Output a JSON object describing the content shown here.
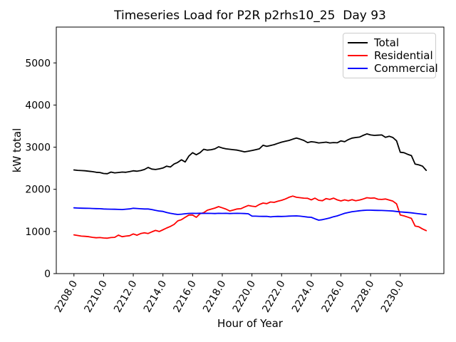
{
  "chart_data": {
    "type": "line",
    "title": "Timeseries Load for P2R p2rhs10_25  Day 93",
    "xlabel": "Hour of Year",
    "ylabel": "kW total",
    "grid": false,
    "legend_position": "upper right",
    "xlim": [
      2206.81,
      2232.94
    ],
    "ylim": [
      0,
      5850
    ],
    "x_tick_values": [
      2208,
      2210,
      2212,
      2214,
      2216,
      2218,
      2220,
      2222,
      2224,
      2226,
      2228,
      2230
    ],
    "x_tick_labels": [
      "2208.0",
      "2210.0",
      "2212.0",
      "2214.0",
      "2216.0",
      "2218.0",
      "2220.0",
      "2222.0",
      "2224.0",
      "2226.0",
      "2228.0",
      "2230.0"
    ],
    "x_tick_rotation_deg": 60,
    "y_tick_values": [
      0,
      1000,
      2000,
      3000,
      4000,
      5000
    ],
    "y_tick_labels": [
      "0",
      "1000",
      "2000",
      "3000",
      "4000",
      "5000"
    ],
    "x_start": 2208.0,
    "x_step": 0.25,
    "series": [
      {
        "name": "Total",
        "color": "#000000",
        "values": [
          2460,
          2450,
          2445,
          2440,
          2430,
          2420,
          2405,
          2400,
          2375,
          2370,
          2410,
          2390,
          2400,
          2410,
          2405,
          2420,
          2440,
          2430,
          2445,
          2470,
          2520,
          2480,
          2470,
          2485,
          2505,
          2550,
          2530,
          2600,
          2640,
          2700,
          2650,
          2790,
          2870,
          2820,
          2870,
          2950,
          2930,
          2940,
          2960,
          3010,
          2980,
          2960,
          2950,
          2940,
          2930,
          2910,
          2890,
          2905,
          2920,
          2940,
          2960,
          3045,
          3020,
          3040,
          3060,
          3090,
          3120,
          3140,
          3160,
          3190,
          3215,
          3190,
          3160,
          3110,
          3130,
          3120,
          3100,
          3110,
          3120,
          3100,
          3110,
          3105,
          3150,
          3130,
          3180,
          3215,
          3230,
          3240,
          3280,
          3316,
          3290,
          3280,
          3285,
          3290,
          3235,
          3260,
          3230,
          3150,
          2880,
          2870,
          2830,
          2800,
          2600,
          2580,
          2550,
          2450
        ]
      },
      {
        "name": "Residential",
        "color": "#ff0000",
        "values": [
          920,
          905,
          890,
          885,
          875,
          860,
          850,
          855,
          845,
          840,
          855,
          860,
          913,
          875,
          890,
          900,
          941,
          911,
          950,
          968,
          952,
          990,
          1025,
          1000,
          1040,
          1082,
          1120,
          1166,
          1251,
          1280,
          1335,
          1390,
          1390,
          1335,
          1420,
          1445,
          1504,
          1530,
          1555,
          1589,
          1560,
          1530,
          1487,
          1510,
          1533,
          1540,
          1580,
          1617,
          1600,
          1589,
          1640,
          1674,
          1660,
          1700,
          1690,
          1717,
          1740,
          1770,
          1810,
          1840,
          1810,
          1800,
          1790,
          1787,
          1750,
          1790,
          1740,
          1730,
          1780,
          1760,
          1790,
          1750,
          1724,
          1750,
          1730,
          1755,
          1730,
          1745,
          1770,
          1800,
          1790,
          1795,
          1765,
          1760,
          1770,
          1745,
          1720,
          1656,
          1390,
          1370,
          1340,
          1310,
          1130,
          1110,
          1060,
          1020
        ]
      },
      {
        "name": "Commercial",
        "color": "#0000ff",
        "values": [
          1560,
          1556,
          1552,
          1550,
          1548,
          1545,
          1542,
          1540,
          1533,
          1530,
          1528,
          1526,
          1524,
          1520,
          1528,
          1535,
          1550,
          1545,
          1538,
          1533,
          1533,
          1520,
          1500,
          1485,
          1476,
          1450,
          1430,
          1415,
          1403,
          1410,
          1420,
          1428,
          1430,
          1428,
          1432,
          1428,
          1430,
          1428,
          1426,
          1430,
          1428,
          1430,
          1426,
          1428,
          1430,
          1428,
          1425,
          1420,
          1365,
          1362,
          1360,
          1358,
          1360,
          1345,
          1355,
          1358,
          1356,
          1360,
          1365,
          1368,
          1370,
          1362,
          1352,
          1340,
          1335,
          1300,
          1268,
          1280,
          1300,
          1320,
          1350,
          1369,
          1400,
          1430,
          1450,
          1470,
          1480,
          1492,
          1500,
          1505,
          1505,
          1502,
          1500,
          1498,
          1495,
          1490,
          1485,
          1475,
          1465,
          1458,
          1450,
          1442,
          1430,
          1420,
          1410,
          1400
        ]
      }
    ]
  }
}
